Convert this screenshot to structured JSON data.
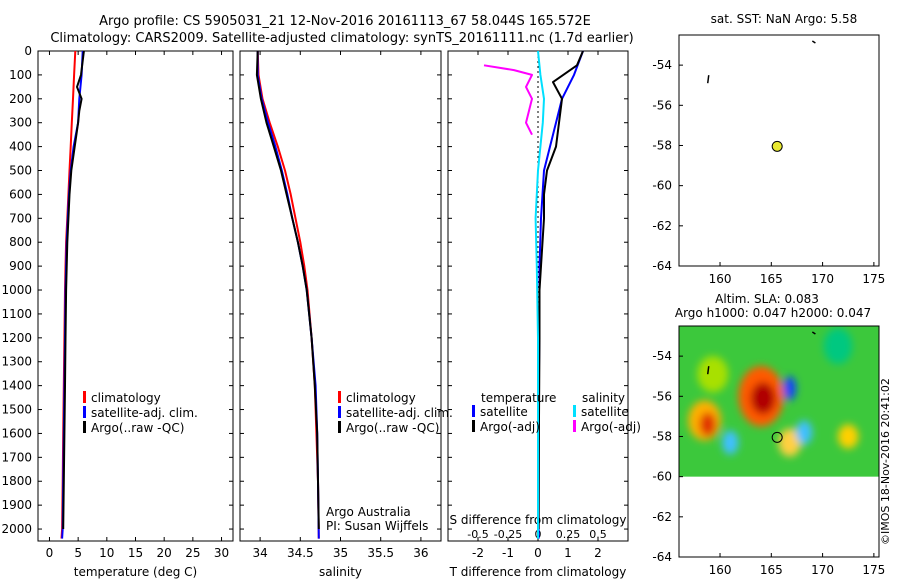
{
  "title_line1": "Argo profile: CS 5905031_21 12-Nov-2016 20161113_67 58.044S 165.572E",
  "title_line2": "Climatology: CARS2009. Satellite-adjusted climatology: synTS_20161111.nc (1.7d earlier)",
  "watermark": "©IMOS 18-Nov-2016 20:41:02",
  "chart_data": [
    {
      "id": "temperature",
      "type": "line",
      "xlabel": "temperature (deg C)",
      "xlim": [
        -2,
        32
      ],
      "xticks": [
        0,
        5,
        10,
        15,
        20,
        25,
        30
      ],
      "xticklabels": [
        "0",
        "5",
        "10",
        "15",
        "20",
        "25",
        "30"
      ],
      "ylim": [
        2050,
        0
      ],
      "yticks": [
        0,
        100,
        200,
        300,
        400,
        500,
        600,
        700,
        800,
        900,
        1000,
        1100,
        1200,
        1300,
        1400,
        1500,
        1600,
        1700,
        1800,
        1900,
        2000
      ],
      "yticklabels": [
        "0",
        "100",
        "200",
        "300",
        "400",
        "500",
        "600",
        "700",
        "800",
        "900",
        "1000",
        "1100",
        "1200",
        "1300",
        "1400",
        "1500",
        "1600",
        "1700",
        "1800",
        "1900",
        "2000"
      ],
      "legend": [
        "climatology",
        "satellite-adj. clim.",
        "Argo(..raw -QC)"
      ],
      "series": [
        {
          "name": "climatology",
          "color": "#ff0000",
          "points": [
            [
              4.5,
              0
            ],
            [
              4.3,
              100
            ],
            [
              4.1,
              200
            ],
            [
              3.9,
              300
            ],
            [
              3.7,
              400
            ],
            [
              3.5,
              500
            ],
            [
              3.3,
              600
            ],
            [
              3.1,
              700
            ],
            [
              2.9,
              800
            ],
            [
              2.8,
              900
            ],
            [
              2.7,
              1000
            ],
            [
              2.6,
              1200
            ],
            [
              2.5,
              1400
            ],
            [
              2.4,
              1600
            ],
            [
              2.3,
              1800
            ],
            [
              2.2,
              2000
            ],
            [
              2.1,
              2040
            ]
          ]
        },
        {
          "name": "satellite-adj. clim.",
          "color": "#0000ff",
          "points": [
            [
              5.8,
              0
            ],
            [
              5.6,
              100
            ],
            [
              5.2,
              200
            ],
            [
              5.0,
              300
            ],
            [
              4.2,
              400
            ],
            [
              3.7,
              500
            ],
            [
              3.4,
              600
            ],
            [
              3.2,
              700
            ],
            [
              3.0,
              800
            ],
            [
              2.9,
              900
            ],
            [
              2.8,
              1000
            ],
            [
              2.7,
              1200
            ],
            [
              2.6,
              1400
            ],
            [
              2.5,
              1600
            ],
            [
              2.4,
              1800
            ],
            [
              2.3,
              2000
            ],
            [
              2.2,
              2040
            ]
          ]
        },
        {
          "name": "Argo(..raw -QC)",
          "color": "#000000",
          "points": [
            [
              6.0,
              0
            ],
            [
              5.5,
              100
            ],
            [
              4.8,
              150
            ],
            [
              5.6,
              200
            ],
            [
              5.2,
              250
            ],
            [
              5.0,
              300
            ],
            [
              4.4,
              400
            ],
            [
              3.8,
              500
            ],
            [
              3.5,
              600
            ],
            [
              3.3,
              700
            ],
            [
              3.1,
              800
            ],
            [
              3.0,
              900
            ],
            [
              2.9,
              1000
            ],
            [
              2.8,
              1200
            ],
            [
              2.7,
              1400
            ],
            [
              2.6,
              1600
            ],
            [
              2.5,
              1800
            ],
            [
              2.4,
              2000
            ]
          ]
        }
      ]
    },
    {
      "id": "salinity",
      "type": "line",
      "xlabel": "salinity",
      "xlim": [
        33.75,
        36.25
      ],
      "xticks": [
        34,
        34.5,
        35,
        35.5,
        36
      ],
      "xticklabels": [
        "34",
        "34.5",
        "35",
        "35.5",
        "36"
      ],
      "ylim": [
        2050,
        0
      ],
      "legend": [
        "climatology",
        "satellite-adj. clim.",
        "Argo(..raw -QC)"
      ],
      "annotation": [
        "Argo Australia",
        "PI: Susan Wijffels"
      ],
      "series": [
        {
          "name": "climatology",
          "color": "#ff0000",
          "points": [
            [
              33.97,
              0
            ],
            [
              33.98,
              100
            ],
            [
              34.03,
              200
            ],
            [
              34.12,
              300
            ],
            [
              34.22,
              400
            ],
            [
              34.31,
              500
            ],
            [
              34.38,
              600
            ],
            [
              34.44,
              700
            ],
            [
              34.5,
              800
            ],
            [
              34.55,
              900
            ],
            [
              34.59,
              1000
            ],
            [
              34.64,
              1200
            ],
            [
              34.68,
              1400
            ],
            [
              34.7,
              1600
            ],
            [
              34.72,
              1800
            ],
            [
              34.73,
              2040
            ]
          ]
        },
        {
          "name": "satellite-adj. clim.",
          "color": "#0000ff",
          "points": [
            [
              33.97,
              0
            ],
            [
              33.97,
              100
            ],
            [
              34.02,
              200
            ],
            [
              34.1,
              300
            ],
            [
              34.19,
              400
            ],
            [
              34.27,
              500
            ],
            [
              34.34,
              600
            ],
            [
              34.4,
              700
            ],
            [
              34.47,
              800
            ],
            [
              34.53,
              900
            ],
            [
              34.58,
              1000
            ],
            [
              34.64,
              1200
            ],
            [
              34.69,
              1400
            ],
            [
              34.71,
              1600
            ],
            [
              34.72,
              1800
            ],
            [
              34.73,
              2040
            ]
          ]
        },
        {
          "name": "Argo(..raw -QC)",
          "color": "#000000",
          "points": [
            [
              33.97,
              0
            ],
            [
              33.96,
              100
            ],
            [
              34.01,
              200
            ],
            [
              34.08,
              300
            ],
            [
              34.17,
              400
            ],
            [
              34.26,
              500
            ],
            [
              34.33,
              600
            ],
            [
              34.4,
              700
            ],
            [
              34.47,
              800
            ],
            [
              34.53,
              900
            ],
            [
              34.58,
              1000
            ],
            [
              34.64,
              1200
            ],
            [
              34.68,
              1400
            ],
            [
              34.71,
              1600
            ],
            [
              34.72,
              1800
            ],
            [
              34.73,
              2000
            ]
          ]
        }
      ]
    },
    {
      "id": "difference",
      "type": "line",
      "xlabel": "T difference from climatology",
      "xlabel2": "S difference from climatology",
      "xlim": [
        -3,
        3
      ],
      "xticks": [
        -2,
        -1,
        0,
        1,
        2
      ],
      "xticklabels": [
        "-2",
        "-1",
        "0",
        "1",
        "2"
      ],
      "xticks2": [
        -0.5,
        -0.25,
        0,
        0.25,
        0.5
      ],
      "xticklabels2": [
        "-0.5",
        "-0.25",
        "0",
        "0.25",
        "0.5"
      ],
      "ylim": [
        2050,
        0
      ],
      "legend_temperature_title": "temperature",
      "legend_salinity_title": "salinity",
      "legend": [
        "satellite",
        "Argo(-adj)",
        "satellite",
        "Argo(-adj)"
      ],
      "series": [
        {
          "name": "T satellite",
          "color": "#0000ff",
          "points": [
            [
              1.5,
              0
            ],
            [
              1.2,
              100
            ],
            [
              0.8,
              200
            ],
            [
              0.6,
              300
            ],
            [
              0.4,
              400
            ],
            [
              0.2,
              500
            ],
            [
              0.1,
              700
            ],
            [
              0.05,
              900
            ],
            [
              0.05,
              1100
            ],
            [
              0.02,
              1500
            ],
            [
              0.02,
              2040
            ]
          ]
        },
        {
          "name": "T Argo(-adj)",
          "color": "#000000",
          "points": [
            [
              1.5,
              0
            ],
            [
              1.3,
              60
            ],
            [
              0.5,
              130
            ],
            [
              0.8,
              200
            ],
            [
              0.7,
              300
            ],
            [
              0.6,
              400
            ],
            [
              0.3,
              500
            ],
            [
              0.2,
              600
            ],
            [
              0.2,
              700
            ],
            [
              0.1,
              900
            ],
            [
              0.05,
              1000
            ],
            [
              0.05,
              1200
            ],
            [
              0.03,
              1600
            ],
            [
              0.02,
              2000
            ]
          ]
        },
        {
          "name": "S satellite",
          "color": "#00e0ff",
          "points": [
            [
              0.0,
              0
            ],
            [
              0.02,
              100
            ],
            [
              0.05,
              200
            ],
            [
              0.04,
              300
            ],
            [
              0.02,
              400
            ],
            [
              0.0,
              500
            ],
            [
              -0.02,
              700
            ],
            [
              -0.01,
              900
            ],
            [
              0.0,
              1200
            ],
            [
              0.0,
              2040
            ]
          ]
        },
        {
          "name": "S Argo(-adj)",
          "color": "#ff00ff",
          "points": [
            [
              -0.45,
              60
            ],
            [
              -0.2,
              80
            ],
            [
              -0.05,
              100
            ],
            [
              -0.1,
              150
            ],
            [
              -0.05,
              200
            ],
            [
              -0.1,
              300
            ],
            [
              -0.05,
              350
            ]
          ]
        }
      ]
    },
    {
      "id": "sst-map",
      "type": "scatter",
      "title": "sat. SST: NaN Argo: 5.58",
      "xlim": [
        156,
        175.5
      ],
      "ylim": [
        -64,
        -52.5
      ],
      "xticks": [
        160,
        165,
        170,
        175
      ],
      "xticklabels": [
        "160",
        "165",
        "170",
        "175"
      ],
      "yticks": [
        -54,
        -56,
        -58,
        -60,
        -62,
        -64
      ],
      "yticklabels": [
        "-54",
        "-56",
        "-58",
        "-60",
        "-62",
        "-64"
      ],
      "marker": {
        "x": 165.572,
        "y": -58.044,
        "color": "#e8e830"
      }
    },
    {
      "id": "sla-map",
      "type": "heatmap",
      "title_line1": "Altim. SLA: 0.083",
      "title_line2": "Argo h1000: 0.047 h2000: 0.047",
      "xlim": [
        156,
        175.5
      ],
      "ylim": [
        -64,
        -52.5
      ],
      "xticks": [
        160,
        165,
        170,
        175
      ],
      "xticklabels": [
        "160",
        "165",
        "170",
        "175"
      ],
      "yticks": [
        -54,
        -56,
        -58,
        -60,
        -62,
        -64
      ],
      "yticklabels": [
        "-54",
        "-56",
        "-58",
        "-60",
        "-62",
        "-64"
      ],
      "field_lat_range": [
        -60,
        -52.5
      ],
      "background_color": "#3cc83c",
      "blobs": [
        {
          "lon": 164.2,
          "lat": -56.1,
          "rx": 1.2,
          "ry": 0.8,
          "color": "#b00000"
        },
        {
          "lon": 164.0,
          "lat": -56.0,
          "rx": 2.2,
          "ry": 1.5,
          "color": "#ff5a00"
        },
        {
          "lon": 158.8,
          "lat": -57.4,
          "rx": 0.8,
          "ry": 0.6,
          "color": "#e03000"
        },
        {
          "lon": 158.5,
          "lat": -57.2,
          "rx": 1.6,
          "ry": 1.0,
          "color": "#ffb000"
        },
        {
          "lon": 166.8,
          "lat": -55.6,
          "rx": 0.6,
          "ry": 0.6,
          "color": "#1040ff"
        },
        {
          "lon": 168.2,
          "lat": -57.8,
          "rx": 0.8,
          "ry": 0.6,
          "color": "#40c0ff"
        },
        {
          "lon": 161.0,
          "lat": -58.3,
          "rx": 0.8,
          "ry": 0.6,
          "color": "#40c0ff"
        },
        {
          "lon": 159.3,
          "lat": -54.9,
          "rx": 1.5,
          "ry": 0.9,
          "color": "#a8e000"
        },
        {
          "lon": 172.5,
          "lat": -58.0,
          "rx": 1.0,
          "ry": 0.6,
          "color": "#ffd000"
        },
        {
          "lon": 171.5,
          "lat": -53.5,
          "rx": 1.4,
          "ry": 0.9,
          "color": "#00c880"
        },
        {
          "lon": 166.8,
          "lat": -58.3,
          "rx": 1.1,
          "ry": 0.7,
          "color": "#ffd040"
        }
      ],
      "marker": {
        "x": 165.572,
        "y": -58.044
      }
    }
  ]
}
